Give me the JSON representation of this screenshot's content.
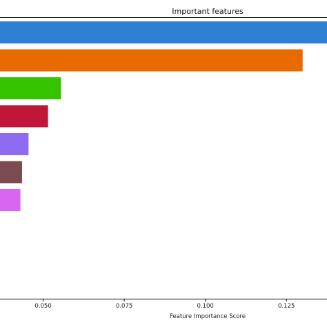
{
  "chart_data": {
    "type": "bar",
    "orientation": "horizontal",
    "title": "Important features",
    "xlabel": "Feature Importance Score",
    "ylabel": "",
    "x_ticks": [
      0.05,
      0.075,
      0.1,
      0.125
    ],
    "x_tick_labels": [
      "0.050",
      "0.075",
      "0.100",
      "0.125"
    ],
    "xlim": [
      0.0367,
      0.1375
    ],
    "grid": false,
    "values": [
      0.148,
      0.13,
      0.0555,
      0.0515,
      0.0455,
      0.0435,
      0.043
    ],
    "colors": [
      "#2f7fd3",
      "#e86a00",
      "#36c300",
      "#c0163a",
      "#8e6cf2",
      "#7b4b52",
      "#d866f0"
    ]
  }
}
